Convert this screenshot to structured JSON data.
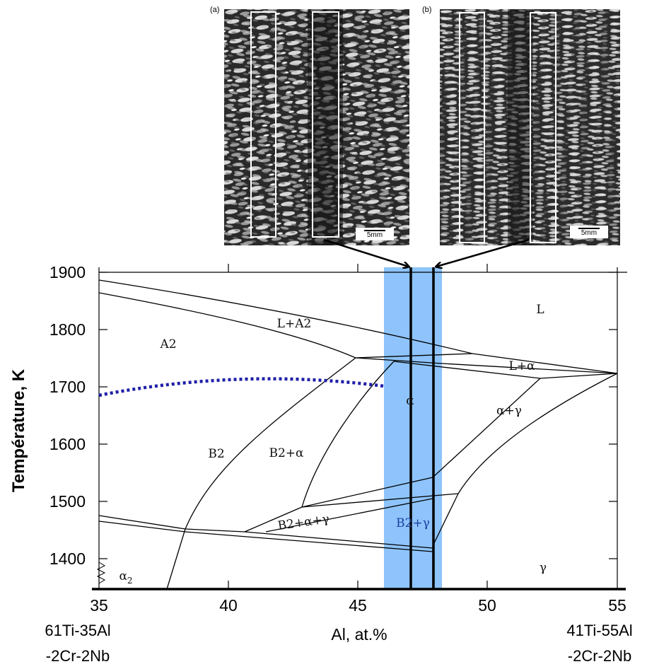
{
  "micrographs": {
    "a": {
      "panel_label": "(a)",
      "scale_label": "5mm"
    },
    "b": {
      "panel_label": "(b)",
      "scale_label": "5mm"
    }
  },
  "phase_diagram": {
    "y_axis_title": "Température, K",
    "x_axis_title": "Al, at.%",
    "y_ticks": [
      "1900",
      "1800",
      "1700",
      "1600",
      "1500",
      "1400"
    ],
    "x_ticks": [
      "35",
      "40",
      "45",
      "50",
      "55"
    ],
    "left_composition": [
      "61Ti-35Al",
      "-2Cr-2Nb"
    ],
    "right_composition": [
      "41Ti-55Al",
      "-2Cr-2Nb"
    ],
    "regions": {
      "L": "L",
      "L_A2": "L+A2",
      "A2": "A2",
      "L_alpha": "L+α",
      "alpha": "α",
      "alpha_gamma": "α+γ",
      "B2": "B2",
      "B2_alpha": "B2+α",
      "B2_alpha_gamma": "B2+α+γ",
      "B2_gamma": "B2+γ",
      "alpha2": "α",
      "alpha2_sub": "2",
      "gamma": "γ"
    },
    "colors": {
      "highlight_band": "#8ec4fb",
      "dotted_boundary": "#1f1fa8",
      "lines": "#000000"
    }
  }
}
